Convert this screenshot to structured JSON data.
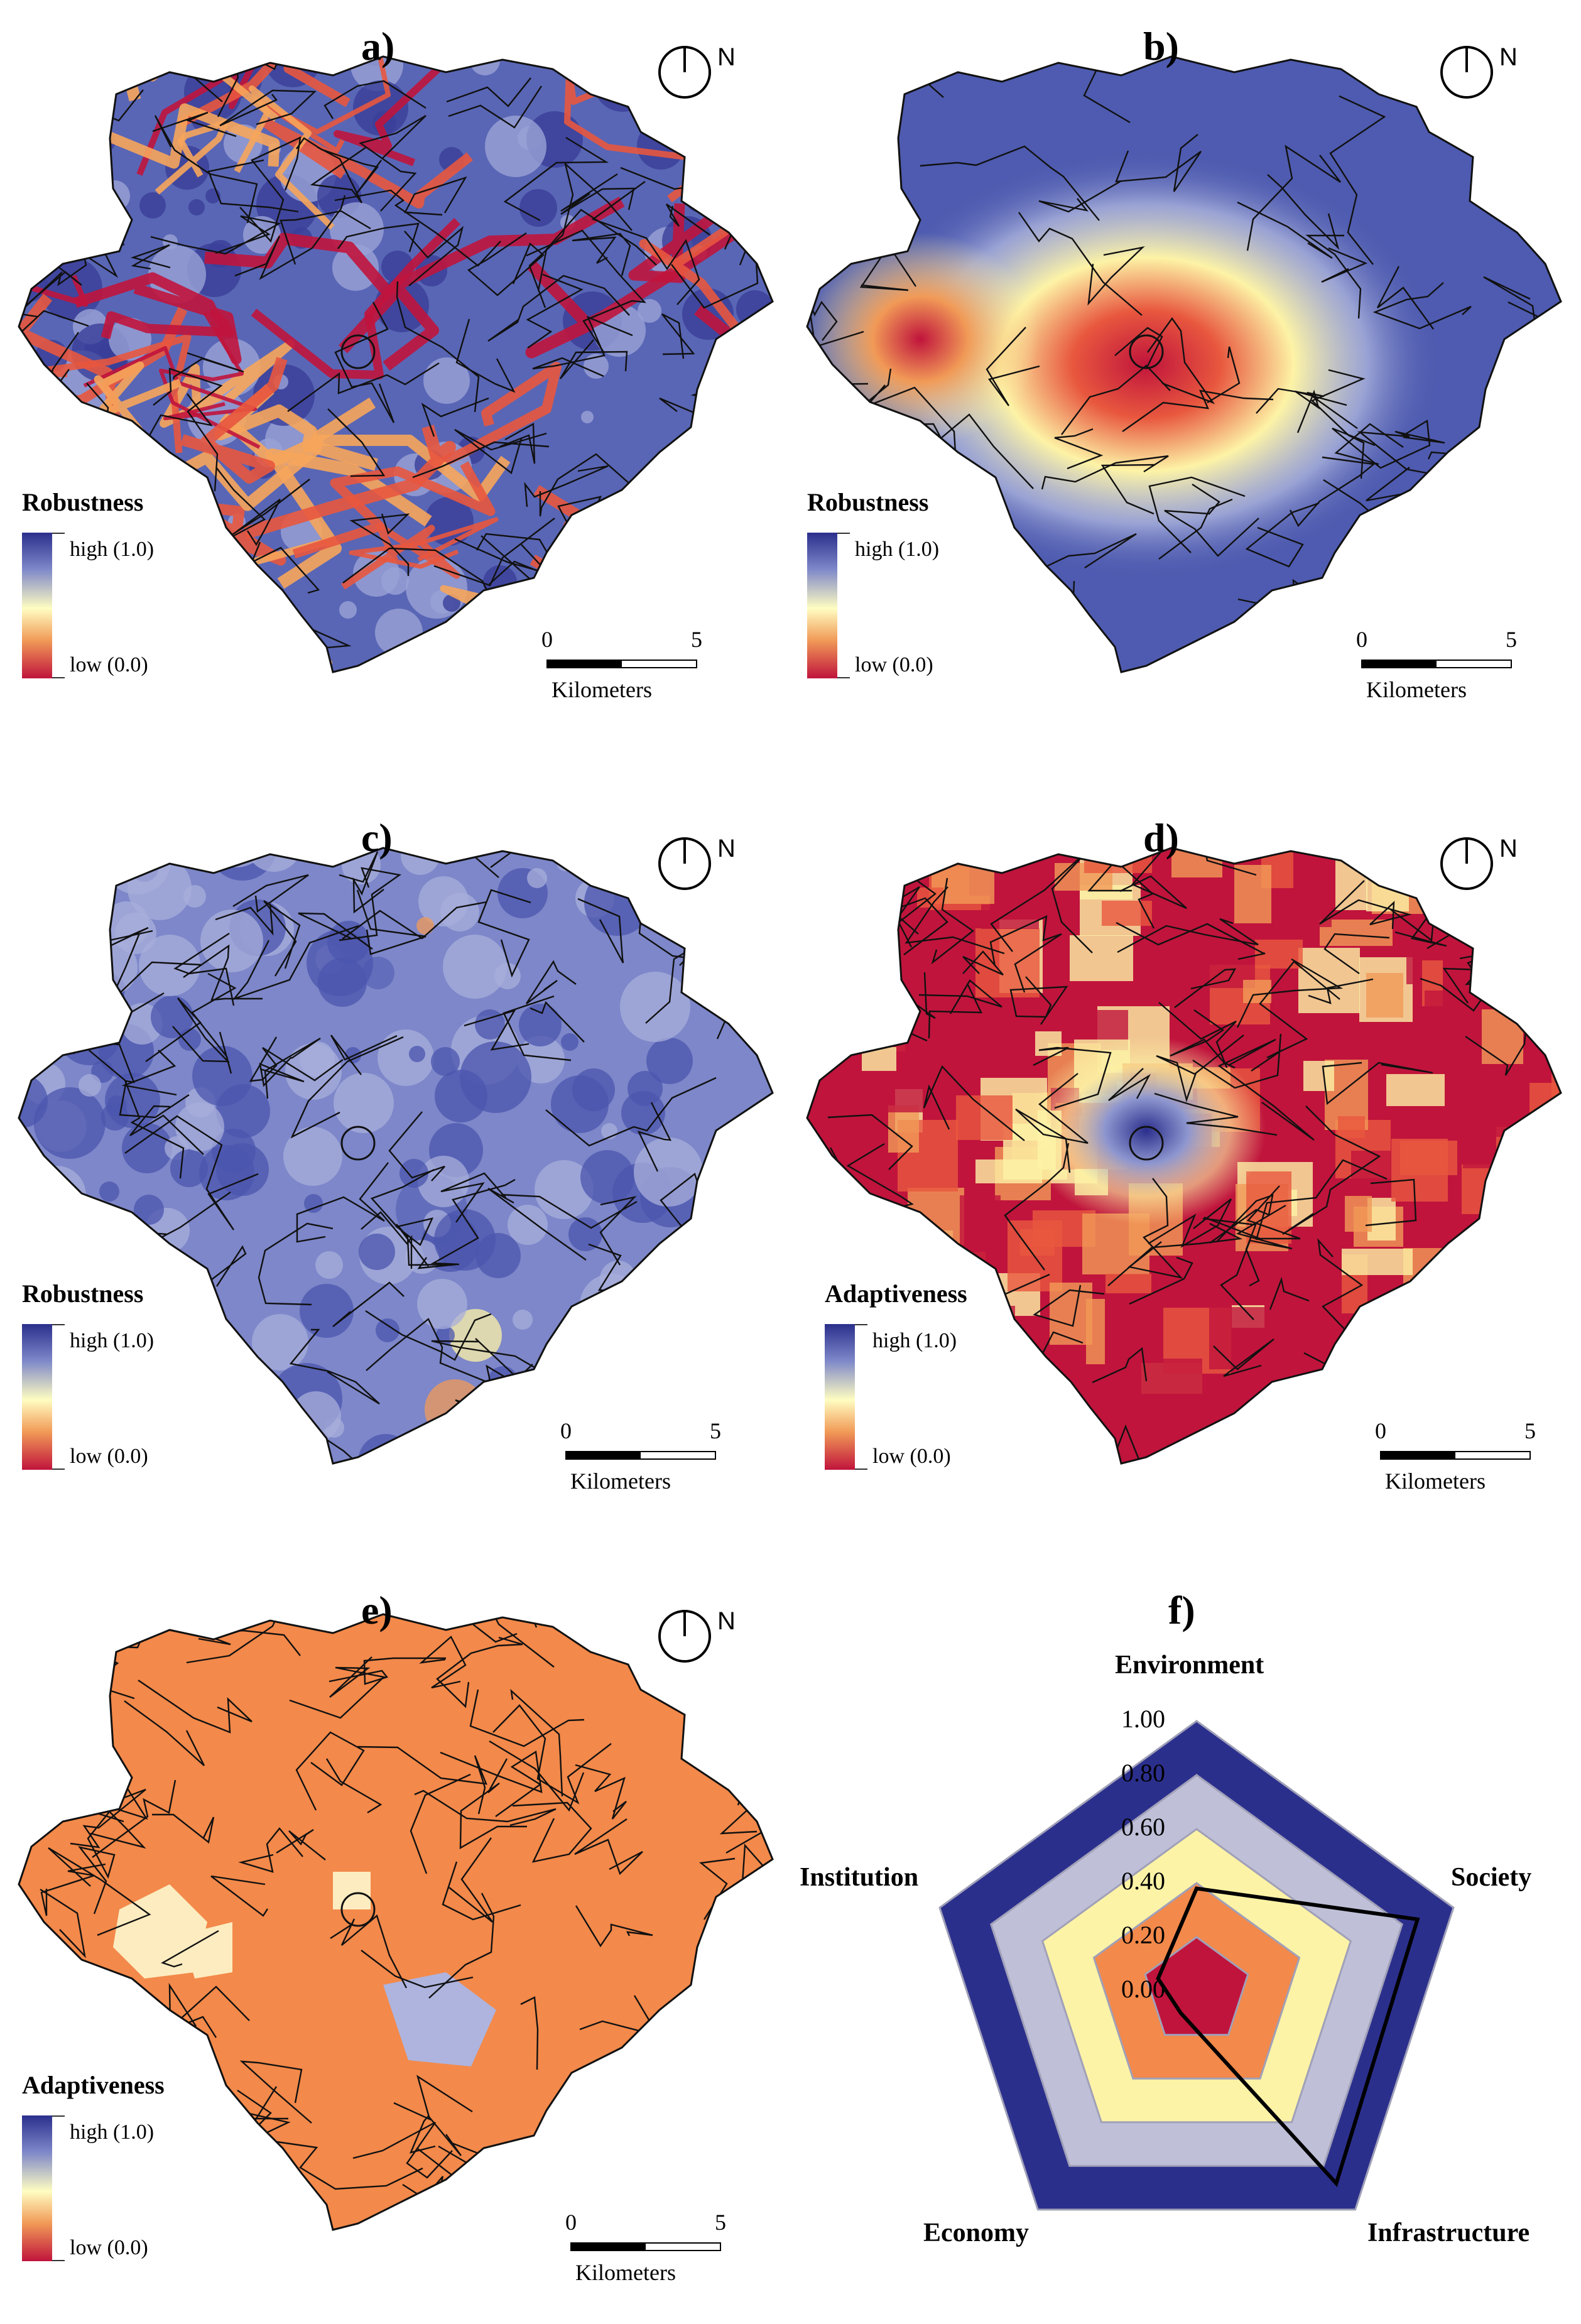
{
  "north_letter": "N",
  "scale_bar": {
    "start": "0",
    "end": "5",
    "unit": "Kilometers"
  },
  "legend_labels": {
    "high": "high (1.0)",
    "low": "low (0.0)"
  },
  "colors": {
    "high": "#2b2f8c",
    "mid_high": "#8e96cf",
    "mid": "#fffdc2",
    "mid_low": "#f19a57",
    "low": "#c0143c",
    "boundary": "#111111"
  },
  "panels": [
    {
      "label": "a)",
      "legend_title": "Robustness",
      "map_style": "road-network-heat"
    },
    {
      "label": "b)",
      "legend_title": "Robustness",
      "map_style": "centre-hotspot"
    },
    {
      "label": "c)",
      "legend_title": "Robustness",
      "map_style": "mostly-high"
    },
    {
      "label": "d)",
      "legend_title": "Adaptiveness",
      "map_style": "mostly-low"
    },
    {
      "label": "e)",
      "legend_title": "Adaptiveness",
      "map_style": "districts-orange"
    }
  ],
  "radar": {
    "label": "f)",
    "axes": [
      "Environment",
      "Society",
      "Infrastructure",
      "Economy",
      "Institution"
    ],
    "tick_labels": [
      "1.00",
      "0.80",
      "0.60",
      "0.40",
      "0.20",
      "0.00"
    ],
    "bands": [
      {
        "from": 0.8,
        "to": 1.0,
        "color": "#2b2f8c"
      },
      {
        "from": 0.6,
        "to": 0.8,
        "color": "#bfc0d8"
      },
      {
        "from": 0.4,
        "to": 0.6,
        "color": "#fdf3a6"
      },
      {
        "from": 0.2,
        "to": 0.4,
        "color": "#f3894a"
      },
      {
        "from": 0.0,
        "to": 0.2,
        "color": "#c0143c"
      }
    ],
    "series_values": [
      0.38,
      0.86,
      0.88,
      0.1,
      0.15
    ]
  }
}
